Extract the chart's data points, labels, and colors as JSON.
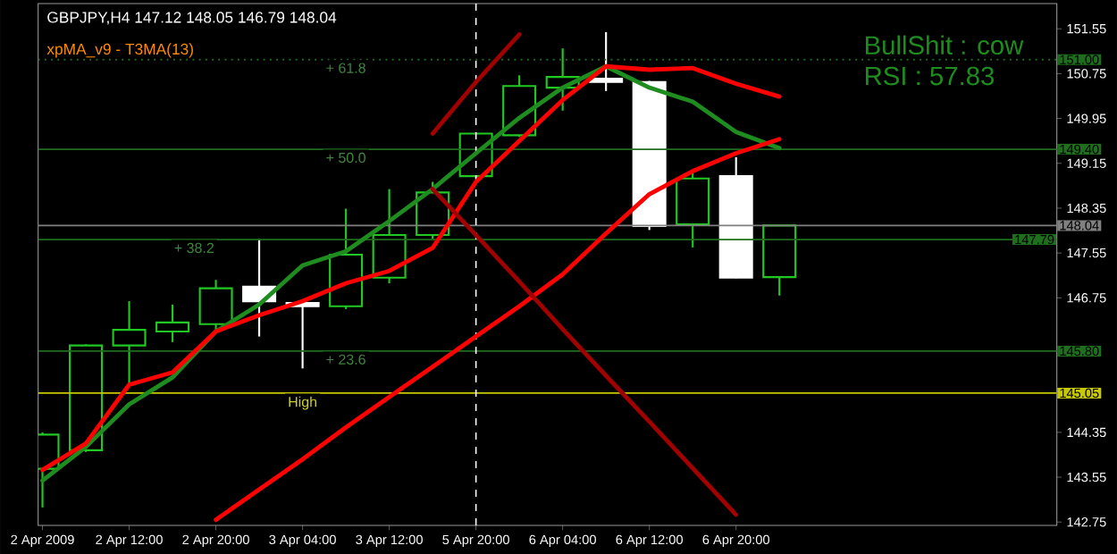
{
  "chart_data": {
    "type": "candlestick",
    "title": "GBPJPY,H4  147.12 148.05 146.79 148.04",
    "subtitle": "xpMA_v9 - T3MA(13)",
    "categories": [
      "2 Apr 2009",
      null,
      "2 Apr 12:00",
      null,
      "2 Apr 20:00",
      null,
      "3 Apr 04:00",
      null,
      "3 Apr 12:00",
      null,
      "5 Apr 20:00",
      null,
      "6 Apr 04:00",
      null,
      "6 Apr 12:00",
      null,
      "6 Apr 20:00",
      null
    ],
    "ohlc": [
      [
        143.7,
        144.35,
        143.01,
        144.31
      ],
      [
        144.03,
        145.92,
        144.0,
        145.9
      ],
      [
        145.9,
        146.69,
        145.2,
        146.18
      ],
      [
        146.15,
        146.63,
        145.96,
        146.31
      ],
      [
        146.28,
        147.07,
        146.15,
        146.92
      ],
      [
        146.95,
        147.8,
        146.06,
        146.69
      ],
      [
        146.66,
        146.68,
        145.49,
        146.6
      ],
      [
        146.6,
        148.34,
        146.55,
        147.52
      ],
      [
        147.11,
        148.69,
        147.01,
        147.87
      ],
      [
        147.87,
        148.82,
        147.8,
        148.63
      ],
      [
        148.92,
        149.7,
        148.88,
        149.68
      ],
      [
        149.65,
        150.72,
        149.62,
        150.53
      ],
      [
        150.5,
        151.2,
        150.09,
        150.69
      ],
      [
        150.66,
        151.49,
        150.44,
        150.6
      ],
      [
        150.6,
        150.62,
        147.96,
        148.03
      ],
      [
        148.06,
        148.98,
        147.65,
        148.88
      ],
      [
        148.92,
        149.26,
        147.1,
        147.11
      ],
      [
        147.12,
        148.05,
        146.79,
        148.04
      ]
    ],
    "colors": [
      "#22c822",
      "#22c822",
      "#22c822",
      "#22c822",
      "#22c822",
      "#ffffff",
      "#ffffff",
      "#22c822",
      "#22c822",
      "#22c822",
      "#22c822",
      "#22c822",
      "#22c822",
      "#ffffff",
      "#ffffff",
      "#22c822",
      "#ffffff",
      "#22c822"
    ],
    "series": [
      {
        "type": "line",
        "color": "#1e8c1e",
        "values": [
          143.49,
          144.09,
          144.85,
          145.33,
          146.15,
          146.63,
          147.33,
          147.58,
          148.12,
          148.69,
          149.33,
          149.96,
          150.5,
          150.88,
          150.5,
          150.25,
          149.71,
          149.42
        ]
      },
      {
        "type": "line",
        "color": "#ff0000",
        "values": [
          143.68,
          144.15,
          145.2,
          145.42,
          146.15,
          146.44,
          146.69,
          147.01,
          147.23,
          147.64,
          148.82,
          149.55,
          150.28,
          150.88,
          150.82,
          150.85,
          150.57,
          150.34
        ]
      },
      {
        "type": "line",
        "color": "#ff0000",
        "values": [
          null,
          null,
          null,
          null,
          142.79,
          143.33,
          143.87,
          144.44,
          144.98,
          145.52,
          146.06,
          146.6,
          147.17,
          147.9,
          148.6,
          149.01,
          149.33,
          149.58
        ]
      },
      {
        "type": "line",
        "color": "#a00000",
        "values": [
          null,
          null,
          null,
          null,
          null,
          null,
          null,
          null,
          null,
          149.68,
          150.6,
          151.45,
          null,
          null,
          null,
          null,
          null,
          null
        ]
      },
      {
        "type": "line",
        "color": "#a00000",
        "values": [
          null,
          null,
          null,
          null,
          null,
          null,
          null,
          null,
          null,
          148.69,
          147.87,
          147.04,
          146.19,
          145.36,
          144.54,
          143.71,
          142.88,
          null
        ]
      }
    ],
    "ylim": [
      142.69,
      152.0
    ],
    "yticks": [
      142.75,
      143.55,
      144.35,
      146.75,
      147.55,
      148.35,
      149.15,
      149.95,
      150.75,
      151.55
    ],
    "ref_lines": [
      {
        "axis": "y",
        "value": 151.0,
        "label": "151.00",
        "color": "#1e6e1e",
        "line_style": "dotted"
      },
      {
        "axis": "y",
        "value": 149.4,
        "label": "149.40",
        "color": "#1e6e1e"
      },
      {
        "axis": "y",
        "value": 148.04,
        "label": "148.04",
        "color": "#808080"
      },
      {
        "axis": "y",
        "value": 147.79,
        "label": "147.79",
        "color": "#1e6e1e"
      },
      {
        "axis": "y",
        "value": 145.8,
        "label": "145.80",
        "color": "#1e6e1e"
      },
      {
        "axis": "y",
        "value": 145.05,
        "label": "145.05",
        "color": "#c8c800"
      },
      {
        "axis": "x",
        "value": "5 Apr 20:00",
        "color": "#ffffff",
        "line_style": "dashed"
      }
    ],
    "annotations": [
      "BullShit : cow",
      "RSI : 57.83",
      {
        "text": "+ 61.8",
        "y": 151.0
      },
      {
        "text": "+ 50.0",
        "y": 149.4
      },
      {
        "text": "+ 38.2",
        "y": 147.79
      },
      {
        "text": "+ 23.6",
        "y": 145.8
      },
      {
        "text": "High",
        "y": 145.05
      }
    ]
  }
}
